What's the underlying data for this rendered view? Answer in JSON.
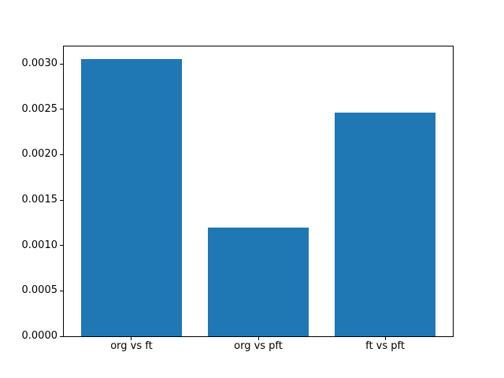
{
  "figure": {
    "background_color": "#ffffff",
    "axis_color": "#000000",
    "text_color": "#000000"
  },
  "chart_data": {
    "type": "bar",
    "title": "",
    "xlabel": "",
    "ylabel": "",
    "categories": [
      "org vs ft",
      "org vs pft",
      "ft vs pft"
    ],
    "values": [
      0.00305,
      0.0012,
      0.00246
    ],
    "bar_color": "#1f77b4",
    "bar_width": 0.8,
    "xlim": [
      -0.54,
      2.54
    ],
    "ylim": [
      0,
      0.0032
    ],
    "yticks": [
      0.0,
      0.0005,
      0.001,
      0.0015,
      0.002,
      0.0025,
      0.003
    ],
    "ytick_labels": [
      "0.0000",
      "0.0005",
      "0.0010",
      "0.0015",
      "0.0020",
      "0.0025",
      "0.0030"
    ],
    "grid": false,
    "legend": null
  }
}
